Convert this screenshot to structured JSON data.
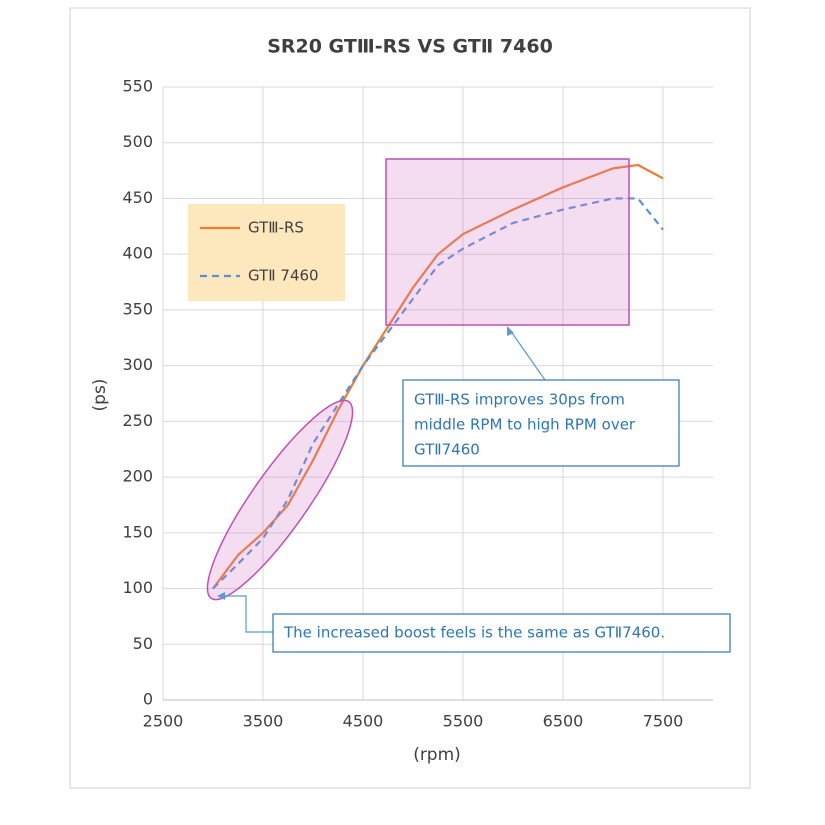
{
  "chart_data": {
    "type": "line",
    "title": "SR20 GTⅢ-RS VS GTⅡ 7460",
    "x_label": "(rpm)",
    "y_label": "(ps)",
    "x": [
      3000,
      3250,
      3500,
      3750,
      4000,
      4250,
      4500,
      4750,
      5000,
      5250,
      5500,
      6000,
      6500,
      7000,
      7250,
      7500
    ],
    "series": [
      {
        "name": "GTⅢ-RS",
        "color": "#ed7d31",
        "dash": false,
        "values": [
          100,
          130,
          150,
          175,
          215,
          260,
          300,
          335,
          370,
          400,
          418,
          440,
          460,
          477,
          480,
          468
        ]
      },
      {
        "name": "GTⅡ 7460",
        "color": "#5b8fd6",
        "dash": true,
        "values": [
          100,
          122,
          145,
          180,
          230,
          265,
          300,
          330,
          360,
          390,
          405,
          428,
          440,
          450,
          450,
          422
        ]
      }
    ],
    "xlim": [
      2500,
      8000
    ],
    "ylim": [
      0,
      550
    ],
    "xticks": [
      2500,
      3500,
      4500,
      5500,
      6500,
      7500
    ],
    "yticks": [
      0,
      50,
      100,
      150,
      200,
      250,
      300,
      350,
      400,
      450,
      500,
      550
    ],
    "grid": true,
    "annotations": [
      [
        "GTⅢ-RS improves 30ps from",
        "middle RPM to high RPM over",
        "GTⅡ7460"
      ],
      [
        "The increased boost feels is the same as GTⅡ7460."
      ]
    ]
  }
}
